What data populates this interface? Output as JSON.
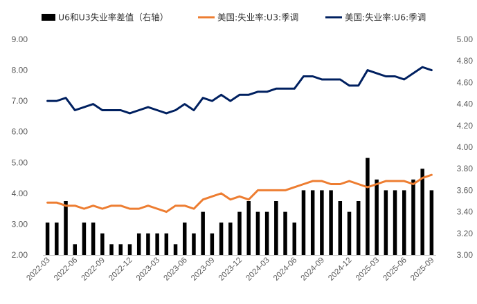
{
  "chart_data": {
    "type": "line",
    "legend": {
      "placement": "top",
      "entries": [
        {
          "label": "U6和U3失业率差值（右轴）",
          "kind": "bar",
          "color": "#000000"
        },
        {
          "label": "美国:失业率:U3:季调",
          "kind": "line",
          "color": "#ED7D31"
        },
        {
          "label": "美国:失业率:U6:季调",
          "kind": "line",
          "color": "#002060"
        }
      ]
    },
    "y_left": {
      "min": 2.0,
      "max": 9.0,
      "ticks": [
        "2.00",
        "3.00",
        "4.00",
        "5.00",
        "6.00",
        "7.00",
        "8.00",
        "9.00"
      ]
    },
    "y_right": {
      "min": 3.0,
      "max": 5.0,
      "ticks": [
        "3.00",
        "3.20",
        "3.40",
        "3.60",
        "3.80",
        "4.00",
        "4.20",
        "4.40",
        "4.60",
        "4.80",
        "5.00"
      ]
    },
    "x_tick_labels": [
      "2022-03",
      "2022-06",
      "2022-09",
      "2022-12",
      "2023-03",
      "2023-06",
      "2023-09",
      "2023-12",
      "2024-03",
      "2024-06",
      "2024-09",
      "2024-12",
      "2025-03",
      "2025-06",
      "2025-09"
    ],
    "x": [
      "2022-03",
      "2022-04",
      "2022-05",
      "2022-06",
      "2022-07",
      "2022-08",
      "2022-09",
      "2022-10",
      "2022-11",
      "2022-12",
      "2023-01",
      "2023-02",
      "2023-03",
      "2023-04",
      "2023-05",
      "2023-06",
      "2023-07",
      "2023-08",
      "2023-09",
      "2023-10",
      "2023-11",
      "2023-12",
      "2024-01",
      "2024-02",
      "2024-03",
      "2024-04",
      "2024-05",
      "2024-06",
      "2024-07",
      "2024-08",
      "2024-09",
      "2024-10",
      "2024-11",
      "2024-12",
      "2025-01",
      "2025-02",
      "2025-03",
      "2025-04",
      "2025-05",
      "2025-06",
      "2025-07",
      "2025-08",
      "2025-09"
    ],
    "series": [
      {
        "name": "U6和U3失业率差值（右轴）",
        "type": "bar",
        "axis": "right",
        "color": "#000000",
        "values": [
          3.3,
          3.3,
          3.5,
          3.1,
          3.3,
          3.3,
          3.2,
          3.1,
          3.1,
          3.1,
          3.2,
          3.2,
          3.2,
          3.2,
          3.1,
          3.3,
          3.2,
          3.4,
          3.2,
          3.3,
          3.3,
          3.4,
          3.5,
          3.4,
          3.4,
          3.5,
          3.4,
          3.3,
          3.6,
          3.6,
          3.6,
          3.6,
          3.5,
          3.4,
          3.5,
          3.9,
          3.7,
          3.6,
          3.6,
          3.6,
          3.7,
          3.8,
          3.6
        ]
      },
      {
        "name": "美国:失业率:U3:季调",
        "type": "line",
        "axis": "left",
        "color": "#ED7D31",
        "values": [
          3.7,
          3.7,
          3.6,
          3.6,
          3.5,
          3.6,
          3.5,
          3.6,
          3.6,
          3.5,
          3.5,
          3.6,
          3.5,
          3.4,
          3.6,
          3.6,
          3.5,
          3.8,
          3.9,
          4.0,
          3.8,
          3.9,
          3.8,
          4.1,
          4.1,
          4.1,
          4.1,
          4.2,
          4.3,
          4.4,
          4.4,
          4.3,
          4.3,
          4.4,
          4.3,
          4.2,
          4.3,
          4.4,
          4.4,
          4.4,
          4.3,
          4.5,
          4.6
        ]
      },
      {
        "name": "美国:失业率:U6:季调",
        "type": "line",
        "axis": "left",
        "color": "#002060",
        "values": [
          7.0,
          7.0,
          7.1,
          6.7,
          6.8,
          6.9,
          6.7,
          6.7,
          6.7,
          6.6,
          6.7,
          6.8,
          6.7,
          6.6,
          6.7,
          6.9,
          6.7,
          7.1,
          7.0,
          7.2,
          7.0,
          7.2,
          7.2,
          7.3,
          7.3,
          7.4,
          7.4,
          7.4,
          7.8,
          7.8,
          7.7,
          7.7,
          7.7,
          7.5,
          7.5,
          8.0,
          7.9,
          7.8,
          7.8,
          7.7,
          7.9,
          8.1,
          8.0
        ]
      }
    ]
  }
}
